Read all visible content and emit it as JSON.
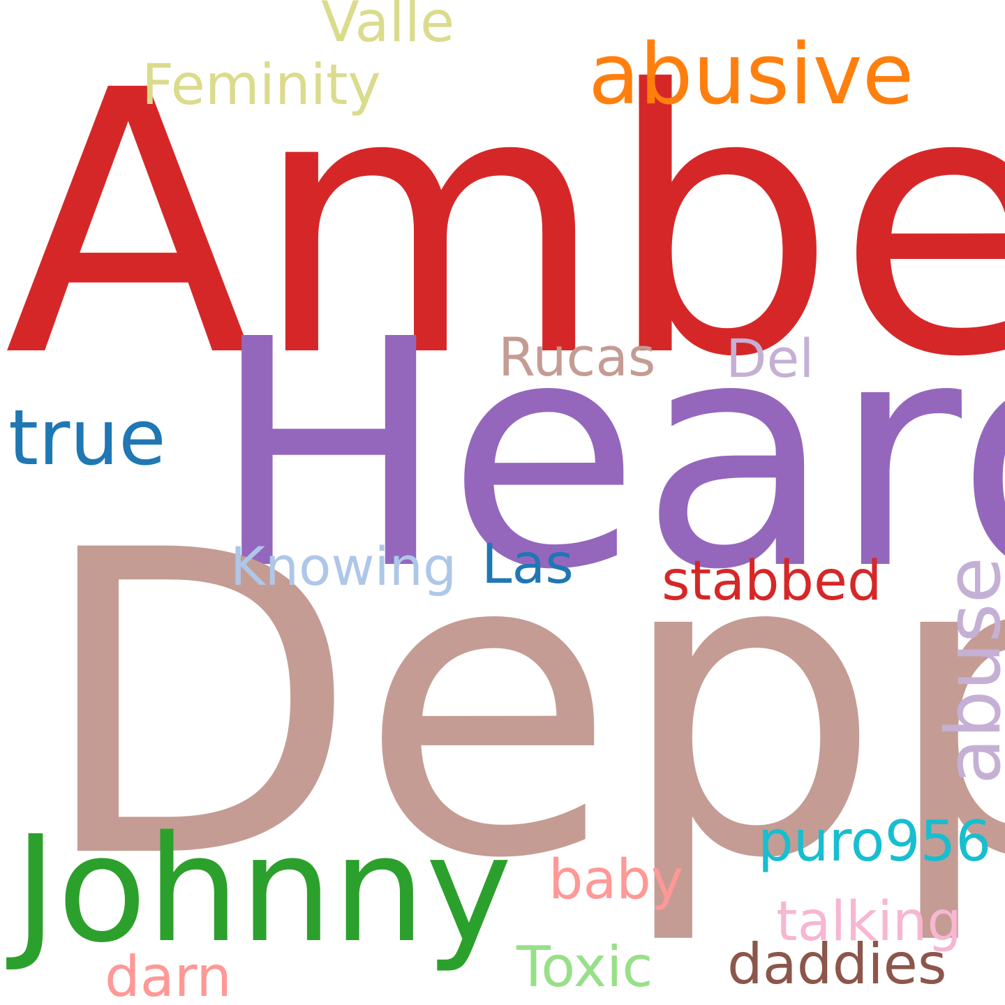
{
  "words": {
    "amber": {
      "text": "Amber",
      "color": "#d62728"
    },
    "heard": {
      "text": "Heard",
      "color": "#9467bd"
    },
    "depp": {
      "text": "Depp",
      "color": "#c49c94"
    },
    "johnny": {
      "text": "Johnny",
      "color": "#2ca02c"
    },
    "abusive": {
      "text": "abusive",
      "color": "#ff7f0e"
    },
    "valle": {
      "text": "Valle",
      "color": "#dbdb8d"
    },
    "feminity": {
      "text": "Feminity",
      "color": "#dbdb8d"
    },
    "rucas": {
      "text": "Rucas",
      "color": "#c49c94"
    },
    "del": {
      "text": "Del",
      "color": "#c5b0d5"
    },
    "true": {
      "text": "true",
      "color": "#1f77b4"
    },
    "knowing": {
      "text": "Knowing",
      "color": "#aec7e8"
    },
    "las": {
      "text": "Las",
      "color": "#1f77b4"
    },
    "stabbed": {
      "text": "stabbed",
      "color": "#d62728"
    },
    "abuse": {
      "text": "abuse",
      "color": "#c5b0d5"
    },
    "puro956": {
      "text": "puro956",
      "color": "#17becf"
    },
    "baby": {
      "text": "baby",
      "color": "#ff9896"
    },
    "talking": {
      "text": "talking",
      "color": "#f7b6d2"
    },
    "darn": {
      "text": "darn",
      "color": "#ff9896"
    },
    "toxic": {
      "text": "Toxic",
      "color": "#98df8a"
    },
    "daddies": {
      "text": "daddies",
      "color": "#8c564b"
    }
  }
}
